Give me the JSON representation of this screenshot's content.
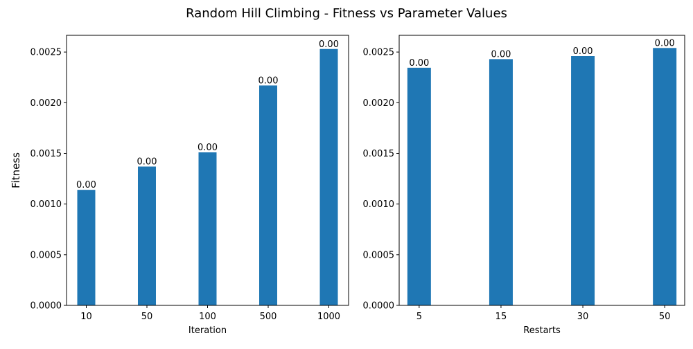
{
  "figure": {
    "suptitle": "Random Hill Climbing - Fitness vs Parameter Values",
    "bar_color": "#1f77b4"
  },
  "chart_data": [
    {
      "type": "bar",
      "title": "",
      "xlabel": "Iteration",
      "ylabel": "Fitness",
      "categories": [
        "10",
        "50",
        "100",
        "500",
        "1000"
      ],
      "values": [
        0.00114,
        0.00137,
        0.00151,
        0.00217,
        0.00253
      ],
      "data_labels": [
        "0.00",
        "0.00",
        "0.00",
        "0.00",
        "0.00"
      ],
      "ylim": [
        0,
        0.002665
      ],
      "yticks": [
        0,
        0.0005,
        0.001,
        0.0015,
        0.002,
        0.0025
      ],
      "ytick_labels": [
        "0.0000",
        "0.0005",
        "0.0010",
        "0.0015",
        "0.0020",
        "0.0025"
      ],
      "grid": false,
      "legend": "none"
    },
    {
      "type": "bar",
      "title": "",
      "xlabel": "Restarts",
      "ylabel": "",
      "categories": [
        "5",
        "15",
        "30",
        "50"
      ],
      "values": [
        0.002345,
        0.00243,
        0.00246,
        0.00254
      ],
      "data_labels": [
        "0.00",
        "0.00",
        "0.00",
        "0.00"
      ],
      "ylim": [
        0,
        0.002665
      ],
      "yticks": [
        0,
        0.0005,
        0.001,
        0.0015,
        0.002,
        0.0025
      ],
      "ytick_labels": [
        "0.0000",
        "0.0005",
        "0.0010",
        "0.0015",
        "0.0020",
        "0.0025"
      ],
      "grid": false,
      "legend": "none"
    }
  ]
}
